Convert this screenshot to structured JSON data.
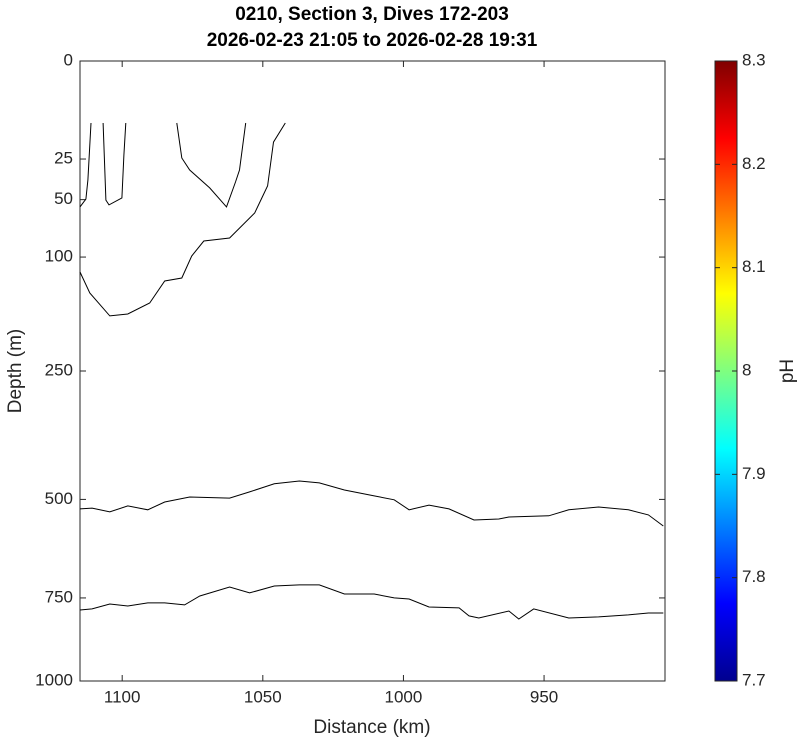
{
  "chart_data": {
    "type": "contour",
    "title": "0210, Section 3, Dives 172-203",
    "subtitle": "2026-02-23 21:05 to 2026-02-28 19:31",
    "x_label": "Distance (km)",
    "y_label": "Depth (m)",
    "xlim": [
      1115,
      907
    ],
    "xticks": [
      1100,
      1050,
      1000,
      950
    ],
    "ylim": [
      0,
      1000
    ],
    "yticks": [
      0,
      25,
      50,
      100,
      250,
      500,
      750,
      1000
    ],
    "yscale": "sqrt",
    "y_reversed": true,
    "series": [
      {
        "color": "#000000",
        "x": [
          1115,
          1112.9,
          1112.2,
          1111.1
        ],
        "values": [
          55.4,
          49.6,
          36.8,
          10
        ]
      },
      {
        "color": "#000000",
        "x": [
          1106.8,
          1105.8,
          1104.7,
          1100.1,
          1099.4,
          1098.7
        ],
        "values": [
          10,
          50.3,
          53.9,
          48.8,
          23,
          10
        ]
      },
      {
        "color": "#000000",
        "x": [
          1080.6,
          1078.8,
          1076,
          1068.9,
          1062.9,
          1059.7,
          1058.3,
          1056.1
        ],
        "values": [
          10,
          24.5,
          30.9,
          41.9,
          55.4,
          38.1,
          30.9,
          10
        ]
      },
      {
        "color": "#000000",
        "x": [
          1115,
          1111.5,
          1104.4,
          1098,
          1090.2,
          1084.9,
          1078.8,
          1075.3,
          1071,
          1061.8,
          1052.9,
          1050.5,
          1048.3,
          1046.2,
          1042
        ],
        "values": [
          115.8,
          140,
          169,
          166.5,
          152.3,
          125.9,
          122.5,
          98.9,
          84.3,
          81.5,
          60.1,
          49.5,
          40.6,
          17.1,
          10
        ]
      },
      {
        "color": "#000000",
        "x": [
          1115,
          1110.7,
          1104.4,
          1098,
          1090.9,
          1084.9,
          1076,
          1061.8,
          1054.7,
          1045.9,
          1037,
          1029.9,
          1021,
          1010.4,
          1003.3,
          998,
          990.9,
          983.8,
          974.9,
          966.1,
          962.5,
          948.3,
          941.2,
          930.6,
          920,
          912.9,
          907.6
        ],
        "values": [
          522,
          520,
          529,
          515,
          524,
          506,
          494.5,
          497,
          483,
          465,
          459,
          463,
          478.7,
          492,
          501,
          524,
          513,
          522,
          548,
          545.6,
          541,
          538,
          524,
          517.5,
          524,
          536,
          562.5
        ]
      },
      {
        "color": "#000000",
        "x": [
          1115,
          1110.7,
          1104.4,
          1098,
          1090.9,
          1084.9,
          1077.8,
          1072.4,
          1061.8,
          1054.7,
          1045.9,
          1037,
          1029.9,
          1021,
          1010.4,
          1003.3,
          998,
          990.9,
          980.2,
          976.7,
          973.2,
          962.5,
          959,
          953.7,
          941.2,
          930.6,
          920,
          912.9,
          907.6
        ],
        "values": [
          784,
          781,
          767,
          772.6,
          764,
          764,
          769.7,
          744.6,
          719.7,
          736,
          717,
          714,
          714,
          739,
          739,
          750,
          753,
          775.5,
          778,
          801,
          807,
          787,
          810,
          781,
          807,
          804,
          798,
          792.6,
          792.6
        ]
      }
    ],
    "colorbar": {
      "label": "pH",
      "clim": [
        7.7,
        8.3
      ],
      "ticks": [
        7.7,
        7.8,
        7.9,
        8,
        8.1,
        8.2,
        8.3
      ],
      "colormap": "jet"
    }
  }
}
